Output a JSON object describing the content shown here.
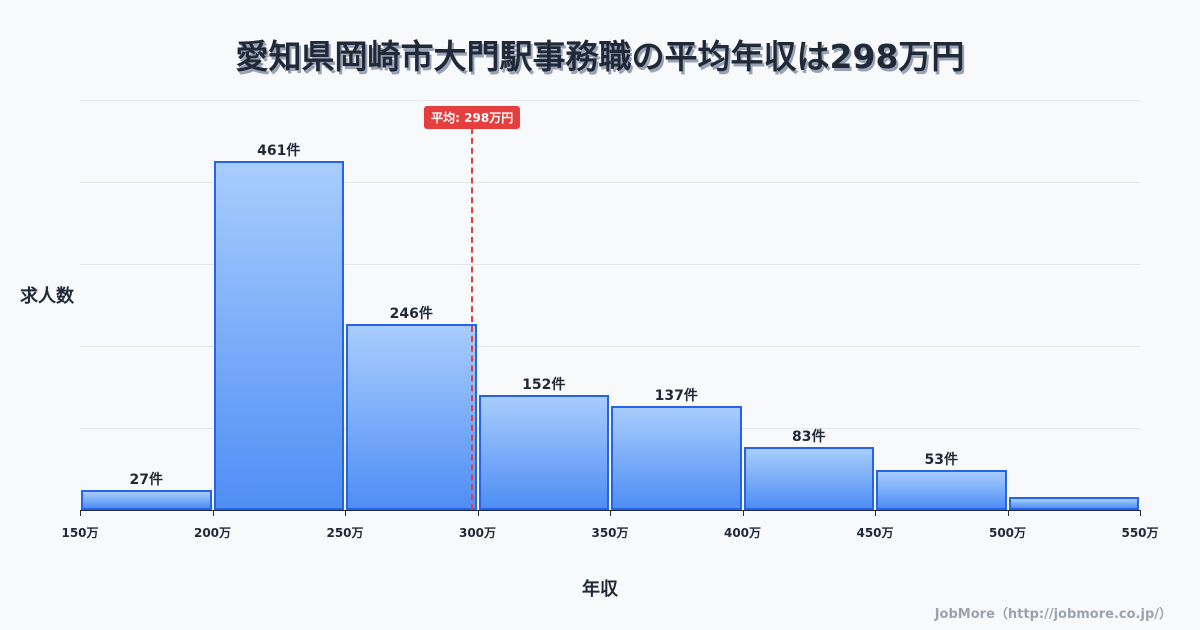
{
  "title": "愛知県岡崎市大門駅事務職の平均年収は298万円",
  "y_axis_label": "求人数",
  "x_axis_label": "年収",
  "credit": "JobMore（http://jobmore.co.jp/）",
  "average_badge": "平均: 298万円",
  "colors": {
    "bar_fill_top": "#a8cdfc",
    "bar_fill_bottom": "#4f8ef5",
    "bar_border": "#2563eb",
    "average_line": "#e53e3e",
    "text": "#1f2937"
  },
  "bars": [
    {
      "range": "150万-200万",
      "value": 27,
      "label": "27件"
    },
    {
      "range": "200万-250万",
      "value": 461,
      "label": "461件"
    },
    {
      "range": "250万-300万",
      "value": 246,
      "label": "246件"
    },
    {
      "range": "300万-350万",
      "value": 152,
      "label": "152件"
    },
    {
      "range": "350万-400万",
      "value": 137,
      "label": "137件"
    },
    {
      "range": "400万-450万",
      "value": 83,
      "label": "83件"
    },
    {
      "range": "450万-500万",
      "value": 53,
      "label": "53件"
    },
    {
      "range": "500万-550万",
      "value": 17,
      "label": ""
    }
  ],
  "ticks": [
    "150万",
    "200万",
    "250万",
    "300万",
    "350万",
    "400万",
    "450万",
    "500万",
    "550万"
  ],
  "chart_data": {
    "type": "bar",
    "title": "愛知県岡崎市大門駅事務職の平均年収は298万円",
    "xlabel": "年収",
    "ylabel": "求人数",
    "categories": [
      "150万-200万",
      "200万-250万",
      "250万-300万",
      "300万-350万",
      "350万-400万",
      "400万-450万",
      "450万-500万",
      "500万-550万"
    ],
    "values": [
      27,
      461,
      246,
      152,
      137,
      83,
      53,
      17
    ],
    "x_ticks": [
      "150万",
      "200万",
      "250万",
      "300万",
      "350万",
      "400万",
      "450万",
      "500万",
      "550万"
    ],
    "xlim": [
      150,
      550
    ],
    "ylim": [
      0,
      541
    ],
    "grid": true,
    "annotations": [
      {
        "type": "vline",
        "x": 298,
        "label": "平均: 298万円",
        "color": "#e53e3e"
      }
    ]
  }
}
